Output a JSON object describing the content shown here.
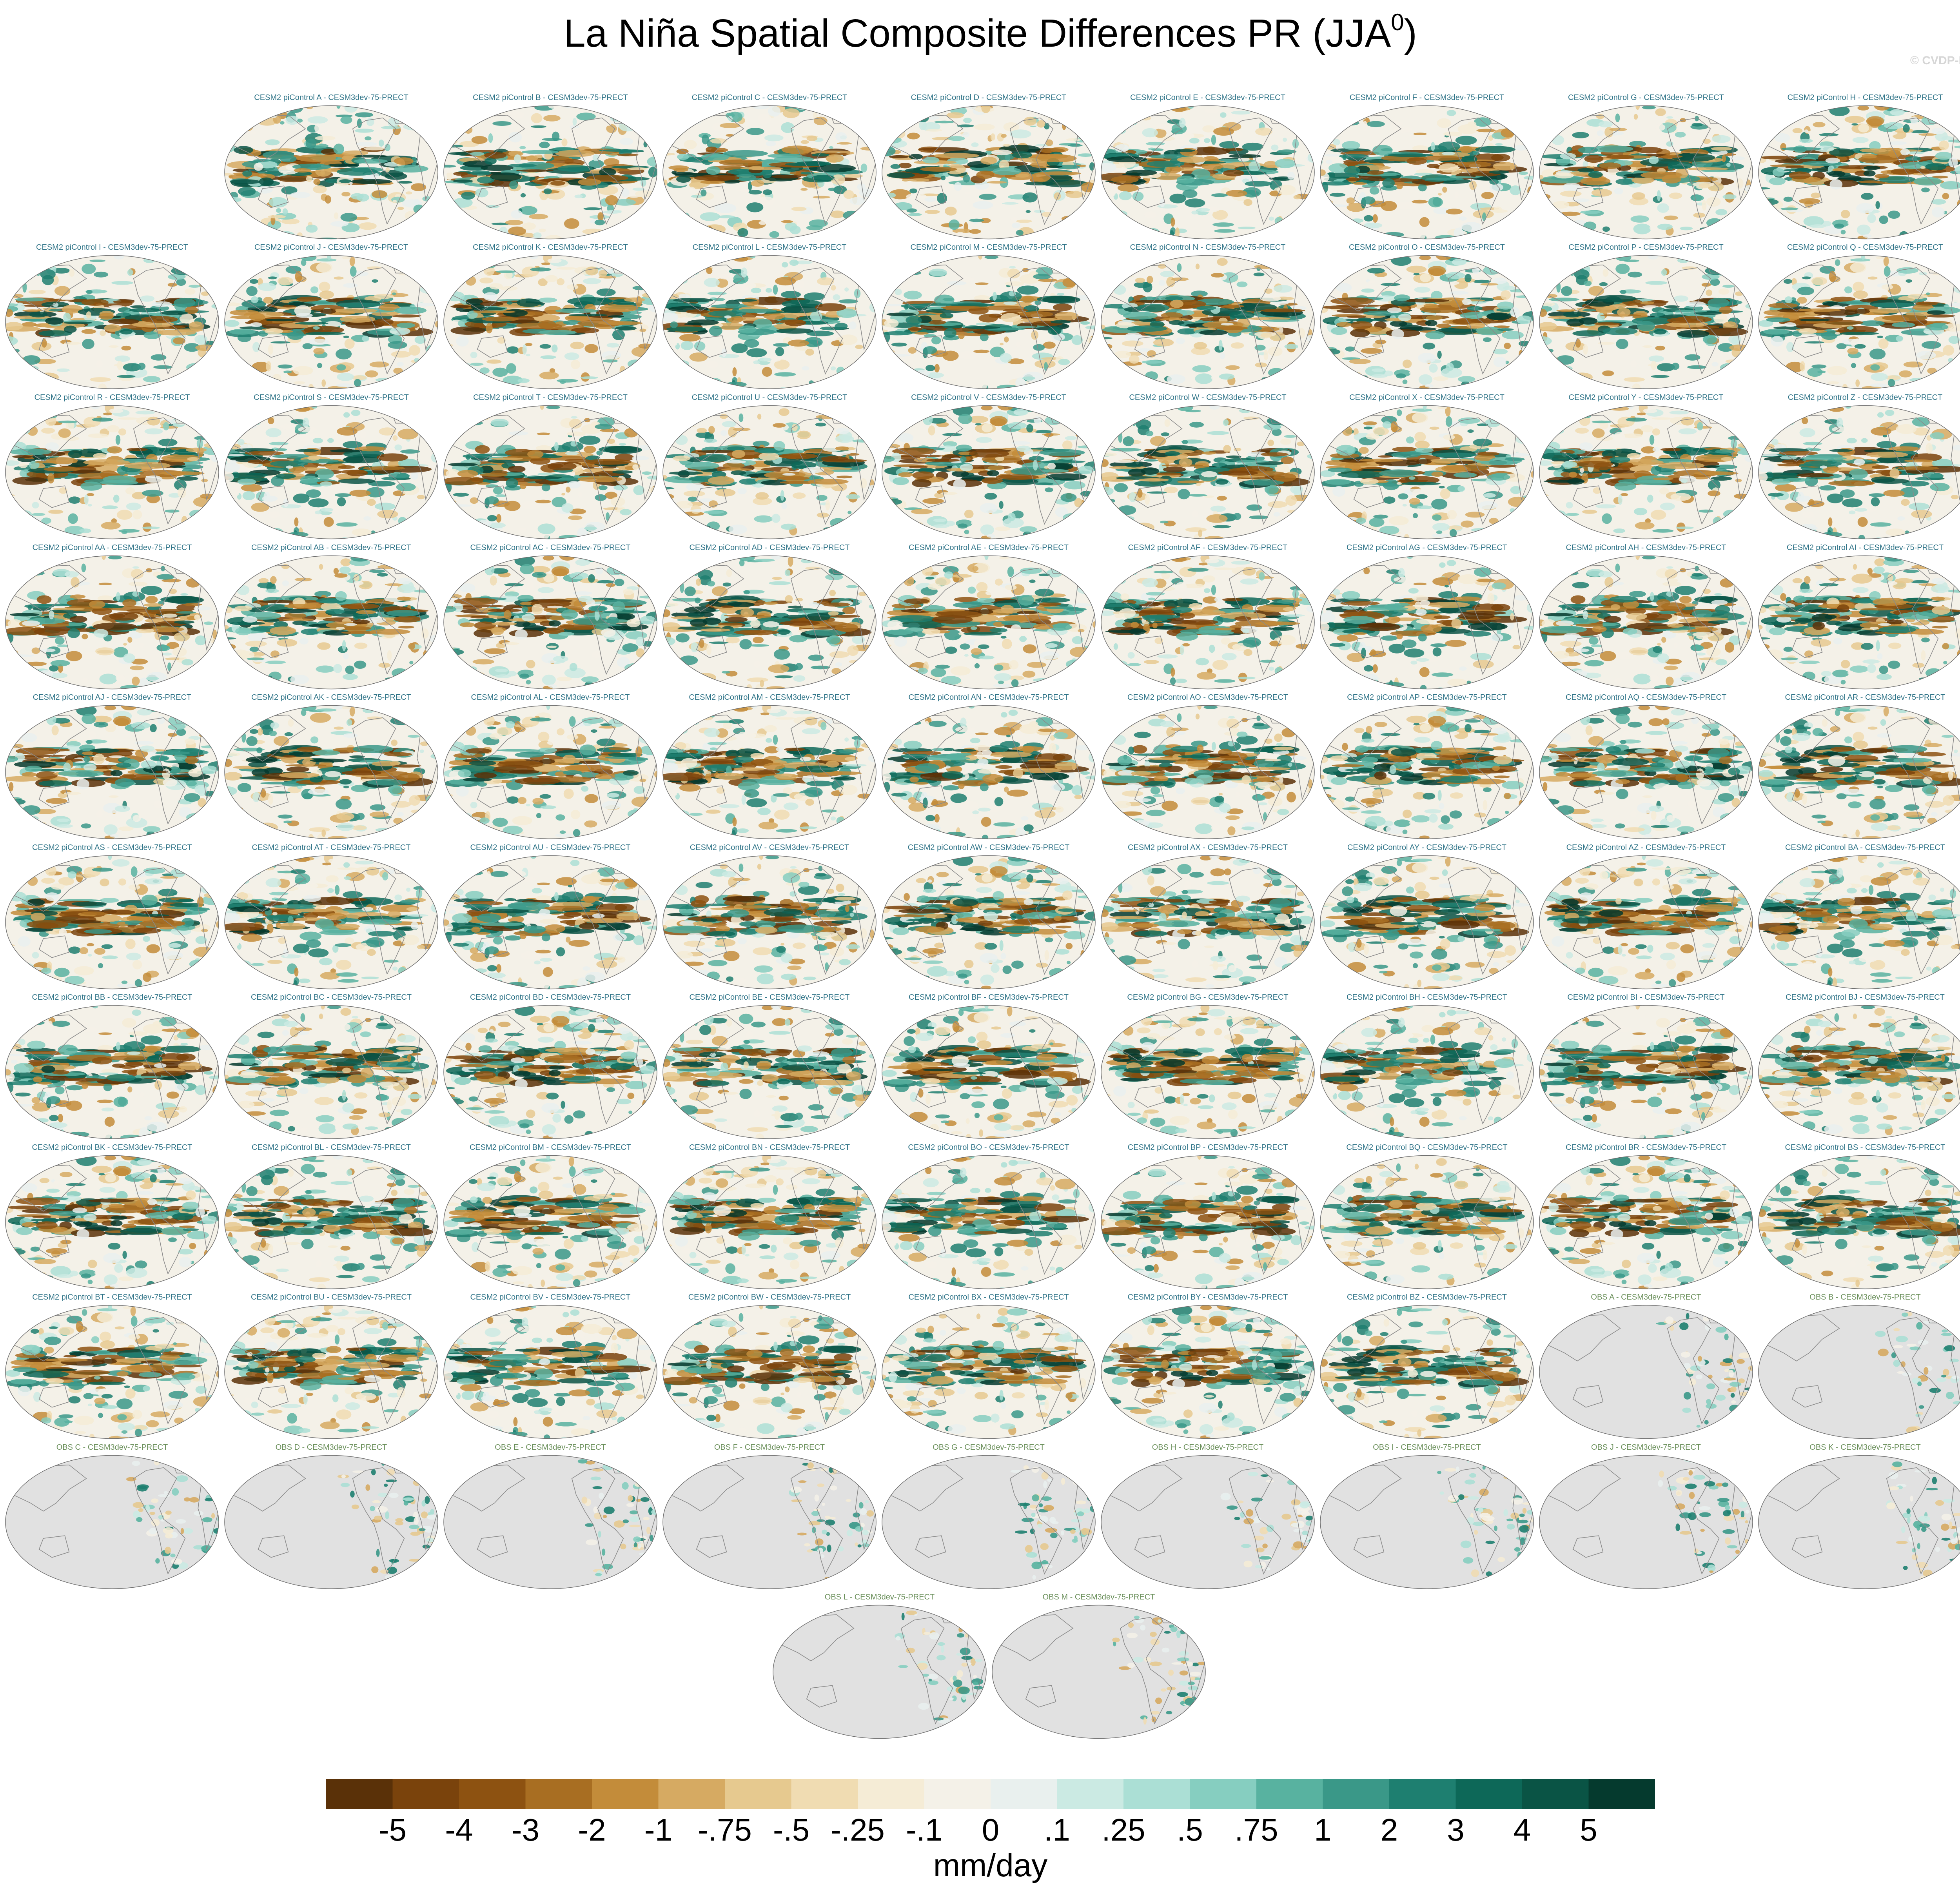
{
  "title": {
    "main": "La Niña Spatial Composite Differences PR (JJA",
    "sup": "0",
    "close": ")"
  },
  "watermark": "© CVDP-LE",
  "chart_data": {
    "type": "heatmap",
    "title": "La Niña Spatial Composite Differences PR (JJA0)",
    "units": "mm/day",
    "projection": "Robinson-like global maps, Pacific-centered",
    "colors": {
      "model_title": "#2e7387",
      "obs_title": "#6a8f5a",
      "land_mask": "#e1e1e1",
      "coast": "#8a8a8a"
    },
    "model_panel_count": 78,
    "obs_panel_count": 13,
    "panels": {
      "models": [
        "CESM2 piControl A - CESM3dev-75-PRECT",
        "CESM2 piControl B - CESM3dev-75-PRECT",
        "CESM2 piControl C - CESM3dev-75-PRECT",
        "CESM2 piControl D - CESM3dev-75-PRECT",
        "CESM2 piControl E - CESM3dev-75-PRECT",
        "CESM2 piControl F - CESM3dev-75-PRECT",
        "CESM2 piControl G - CESM3dev-75-PRECT",
        "CESM2 piControl H - CESM3dev-75-PRECT",
        "CESM2 piControl I - CESM3dev-75-PRECT",
        "CESM2 piControl J - CESM3dev-75-PRECT",
        "CESM2 piControl K - CESM3dev-75-PRECT",
        "CESM2 piControl L - CESM3dev-75-PRECT",
        "CESM2 piControl M - CESM3dev-75-PRECT",
        "CESM2 piControl N - CESM3dev-75-PRECT",
        "CESM2 piControl O - CESM3dev-75-PRECT",
        "CESM2 piControl P - CESM3dev-75-PRECT",
        "CESM2 piControl Q - CESM3dev-75-PRECT",
        "CESM2 piControl R - CESM3dev-75-PRECT",
        "CESM2 piControl S - CESM3dev-75-PRECT",
        "CESM2 piControl T - CESM3dev-75-PRECT",
        "CESM2 piControl U - CESM3dev-75-PRECT",
        "CESM2 piControl V - CESM3dev-75-PRECT",
        "CESM2 piControl W - CESM3dev-75-PRECT",
        "CESM2 piControl X - CESM3dev-75-PRECT",
        "CESM2 piControl Y - CESM3dev-75-PRECT",
        "CESM2 piControl Z - CESM3dev-75-PRECT",
        "CESM2 piControl AA - CESM3dev-75-PRECT",
        "CESM2 piControl AB - CESM3dev-75-PRECT",
        "CESM2 piControl AC - CESM3dev-75-PRECT",
        "CESM2 piControl AD - CESM3dev-75-PRECT",
        "CESM2 piControl AE - CESM3dev-75-PRECT",
        "CESM2 piControl AF - CESM3dev-75-PRECT",
        "CESM2 piControl AG - CESM3dev-75-PRECT",
        "CESM2 piControl AH - CESM3dev-75-PRECT",
        "CESM2 piControl AI - CESM3dev-75-PRECT",
        "CESM2 piControl AJ - CESM3dev-75-PRECT",
        "CESM2 piControl AK - CESM3dev-75-PRECT",
        "CESM2 piControl AL - CESM3dev-75-PRECT",
        "CESM2 piControl AM - CESM3dev-75-PRECT",
        "CESM2 piControl AN - CESM3dev-75-PRECT",
        "CESM2 piControl AO - CESM3dev-75-PRECT",
        "CESM2 piControl AP - CESM3dev-75-PRECT",
        "CESM2 piControl AQ - CESM3dev-75-PRECT",
        "CESM2 piControl AR - CESM3dev-75-PRECT",
        "CESM2 piControl AS - CESM3dev-75-PRECT",
        "CESM2 piControl AT - CESM3dev-75-PRECT",
        "CESM2 piControl AU - CESM3dev-75-PRECT",
        "CESM2 piControl AV - CESM3dev-75-PRECT",
        "CESM2 piControl AW - CESM3dev-75-PRECT",
        "CESM2 piControl AX - CESM3dev-75-PRECT",
        "CESM2 piControl AY - CESM3dev-75-PRECT",
        "CESM2 piControl AZ - CESM3dev-75-PRECT",
        "CESM2 piControl BA - CESM3dev-75-PRECT",
        "CESM2 piControl BB - CESM3dev-75-PRECT",
        "CESM2 piControl BC - CESM3dev-75-PRECT",
        "CESM2 piControl BD - CESM3dev-75-PRECT",
        "CESM2 piControl BE - CESM3dev-75-PRECT",
        "CESM2 piControl BF - CESM3dev-75-PRECT",
        "CESM2 piControl BG - CESM3dev-75-PRECT",
        "CESM2 piControl BH - CESM3dev-75-PRECT",
        "CESM2 piControl BI - CESM3dev-75-PRECT",
        "CESM2 piControl BJ - CESM3dev-75-PRECT",
        "CESM2 piControl BK - CESM3dev-75-PRECT",
        "CESM2 piControl BL - CESM3dev-75-PRECT",
        "CESM2 piControl BM - CESM3dev-75-PRECT",
        "CESM2 piControl BN - CESM3dev-75-PRECT",
        "CESM2 piControl BO - CESM3dev-75-PRECT",
        "CESM2 piControl BP - CESM3dev-75-PRECT",
        "CESM2 piControl BQ - CESM3dev-75-PRECT",
        "CESM2 piControl BR - CESM3dev-75-PRECT",
        "CESM2 piControl BS - CESM3dev-75-PRECT",
        "CESM2 piControl BT - CESM3dev-75-PRECT",
        "CESM2 piControl BU - CESM3dev-75-PRECT",
        "CESM2 piControl BV - CESM3dev-75-PRECT",
        "CESM2 piControl BW - CESM3dev-75-PRECT",
        "CESM2 piControl BX - CESM3dev-75-PRECT",
        "CESM2 piControl BY - CESM3dev-75-PRECT",
        "CESM2 piControl BZ - CESM3dev-75-PRECT"
      ],
      "obs": [
        "OBS A - CESM3dev-75-PRECT",
        "OBS B - CESM3dev-75-PRECT",
        "OBS C - CESM3dev-75-PRECT",
        "OBS D - CESM3dev-75-PRECT",
        "OBS E - CESM3dev-75-PRECT",
        "OBS F - CESM3dev-75-PRECT",
        "OBS G - CESM3dev-75-PRECT",
        "OBS H - CESM3dev-75-PRECT",
        "OBS I - CESM3dev-75-PRECT",
        "OBS J - CESM3dev-75-PRECT",
        "OBS K - CESM3dev-75-PRECT",
        "OBS L - CESM3dev-75-PRECT",
        "OBS M - CESM3dev-75-PRECT"
      ]
    },
    "colorbar": {
      "labels": [
        "-5",
        "-4",
        "-3",
        "-2",
        "-1",
        "-.75",
        "-.5",
        "-.25",
        "-.1",
        "0",
        ".1",
        ".25",
        ".5",
        ".75",
        "1",
        "2",
        "3",
        "4",
        "5"
      ],
      "colors": [
        "#5a3108",
        "#7a430c",
        "#8d5211",
        "#a86e22",
        "#c38c3a",
        "#d6aa62",
        "#e6c98f",
        "#f0dcb2",
        "#f5ecd6",
        "#f4f1e8",
        "#e9f0ee",
        "#cbeae3",
        "#abdfd5",
        "#86cec0",
        "#58b2a0",
        "#3a9888",
        "#1e7f70",
        "#0d6858",
        "#0a5445",
        "#053a2e"
      ],
      "label": "mm/day"
    }
  }
}
